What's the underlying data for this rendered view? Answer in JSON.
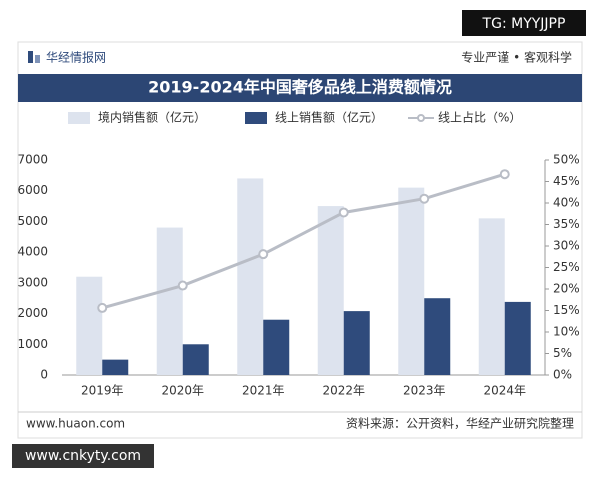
{
  "page": {
    "tag": "TG: MYYJJPP",
    "logo": "华经情报网",
    "slogan": "专业严谨 • 客观科学",
    "site": "www.huaon.com",
    "source": "资料来源：公开资料，华经产业研究院整理",
    "watermark": "www.cnkyty.com"
  },
  "chart_data": {
    "type": "bar",
    "title": "2019-2024年中国奢侈品线上消费额情况",
    "categories": [
      "2019年",
      "2020年",
      "2021年",
      "2022年",
      "2023年",
      "2024年"
    ],
    "series": [
      {
        "name": "境内销售额（亿元）",
        "type": "bar",
        "color": "#dde3ee",
        "values": [
          3200,
          4800,
          6400,
          5500,
          6100,
          5100
        ]
      },
      {
        "name": "线上销售额（亿元）",
        "type": "bar",
        "color": "#2f4b7c",
        "values": [
          500,
          1000,
          1800,
          2080,
          2500,
          2380
        ]
      },
      {
        "name": "线上占比（%）",
        "type": "line",
        "axis": "y2",
        "color": "#b9bdc6",
        "values": [
          15.6,
          20.8,
          28.1,
          37.8,
          41.0,
          46.7
        ]
      }
    ],
    "ylim": [
      0,
      7000
    ],
    "yticks": [
      0,
      1000,
      2000,
      3000,
      4000,
      5000,
      6000,
      7000
    ],
    "y2lim": [
      0,
      50
    ],
    "y2ticks": [
      {
        "value": 0,
        "label": "0%"
      },
      {
        "value": 5,
        "label": "5%"
      },
      {
        "value": 10,
        "label": "10%"
      },
      {
        "value": 15,
        "label": "15%"
      },
      {
        "value": 20,
        "label": "20%"
      },
      {
        "value": 25,
        "label": "25%"
      },
      {
        "value": 30,
        "label": "30%"
      },
      {
        "value": 35,
        "label": "35%"
      },
      {
        "value": 40,
        "label": "40%"
      },
      {
        "value": 45,
        "label": "45%"
      },
      {
        "value": 50,
        "label": "50%"
      }
    ],
    "grid": false
  }
}
